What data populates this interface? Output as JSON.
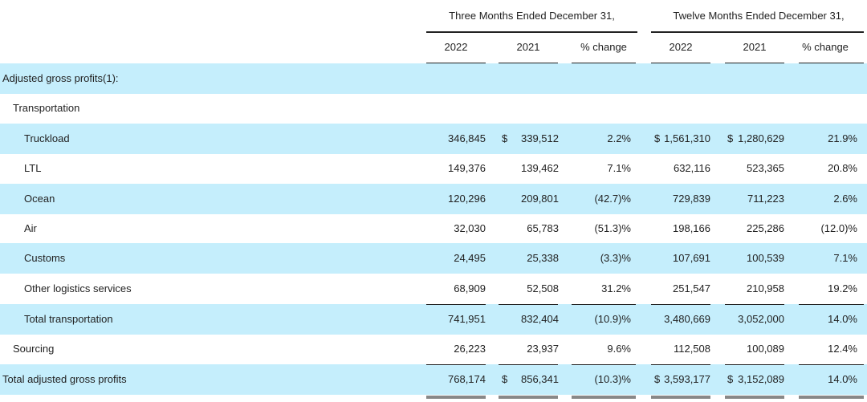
{
  "header": {
    "three_months": "Three Months Ended December 31,",
    "twelve_months": "Twelve Months Ended December 31,",
    "col_2022": "2022",
    "col_2021": "2021",
    "col_pct": "% change"
  },
  "rows": [
    {
      "label": "Adjusted gross profits(1):",
      "indent": 0,
      "band": true,
      "cells": [
        "",
        "",
        "",
        "",
        "",
        ""
      ],
      "dollars": []
    },
    {
      "label": "Transportation",
      "indent": 1,
      "band": false,
      "cells": [
        "",
        "",
        "",
        "",
        "",
        ""
      ],
      "dollars": []
    },
    {
      "label": "Truckload",
      "indent": 2,
      "band": true,
      "cells": [
        "346,845",
        "339,512",
        "2.2%",
        "1,561,310",
        "1,280,629",
        "21.9%"
      ],
      "dollars": [
        1,
        3,
        4
      ]
    },
    {
      "label": "LTL",
      "indent": 2,
      "band": false,
      "cells": [
        "149,376",
        "139,462",
        "7.1%",
        "632,116",
        "523,365",
        "20.8%"
      ],
      "dollars": []
    },
    {
      "label": "Ocean",
      "indent": 2,
      "band": true,
      "cells": [
        "120,296",
        "209,801",
        "(42.7)%",
        "729,839",
        "711,223",
        "2.6%"
      ],
      "dollars": []
    },
    {
      "label": "Air",
      "indent": 2,
      "band": false,
      "cells": [
        "32,030",
        "65,783",
        "(51.3)%",
        "198,166",
        "225,286",
        "(12.0)%"
      ],
      "dollars": []
    },
    {
      "label": "Customs",
      "indent": 2,
      "band": true,
      "cells": [
        "24,495",
        "25,338",
        "(3.3)%",
        "107,691",
        "100,539",
        "7.1%"
      ],
      "dollars": []
    },
    {
      "label": "Other logistics services",
      "indent": 2,
      "band": false,
      "cells": [
        "68,909",
        "52,508",
        "31.2%",
        "251,547",
        "210,958",
        "19.2%"
      ],
      "dollars": []
    },
    {
      "label": "Total transportation",
      "indent": 2,
      "band": true,
      "cells": [
        "741,951",
        "832,404",
        "(10.9)%",
        "3,480,669",
        "3,052,000",
        "14.0%"
      ],
      "dollars": []
    },
    {
      "label": "Sourcing",
      "indent": 1,
      "band": false,
      "cells": [
        "26,223",
        "23,937",
        "9.6%",
        "112,508",
        "100,089",
        "12.4%"
      ],
      "dollars": []
    },
    {
      "label": "Total adjusted gross profits",
      "indent": 0,
      "band": true,
      "cells": [
        "768,174",
        "856,341",
        "(10.3)%",
        "3,593,177",
        "3,152,089",
        "14.0%"
      ],
      "dollars": [
        1,
        3,
        4
      ]
    }
  ],
  "currency_symbol": "$"
}
